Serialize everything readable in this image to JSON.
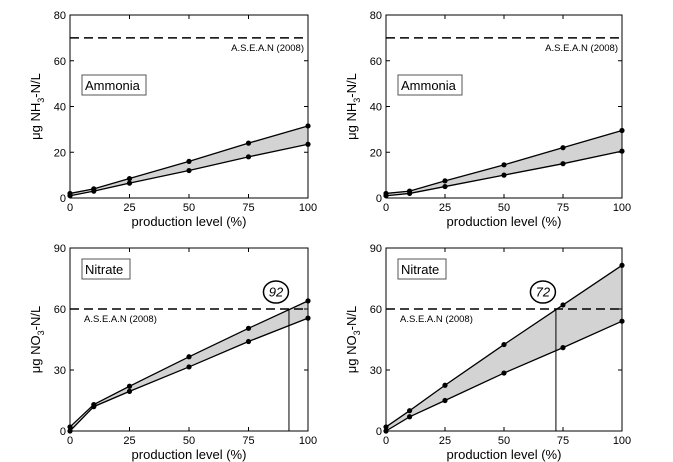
{
  "chart_data": [
    {
      "type": "area",
      "panel_label": "Ammonia",
      "xlabel": "production level (%)",
      "ylabel_parts": [
        "μg NH",
        "3",
        "-N/L"
      ],
      "xlim": [
        0,
        100
      ],
      "ylim": [
        0,
        80
      ],
      "xticks": [
        0,
        25,
        50,
        75,
        100
      ],
      "yticks": [
        0,
        20,
        40,
        60,
        80
      ],
      "reference": {
        "label": "A.S.E.A.N (2008)",
        "value": 70
      },
      "x": [
        0,
        10,
        25,
        50,
        75,
        100
      ],
      "series": [
        {
          "values": [
            2,
            4,
            8.5,
            16,
            24,
            31.5
          ]
        },
        {
          "values": [
            1,
            3,
            6.5,
            12,
            18,
            23.5
          ]
        }
      ],
      "crossing": null
    },
    {
      "type": "area",
      "panel_label": "Ammonia",
      "xlabel": "production level (%)",
      "ylabel_parts": [
        "μg NH",
        "3",
        "-N/L"
      ],
      "xlim": [
        0,
        100
      ],
      "ylim": [
        0,
        80
      ],
      "xticks": [
        0,
        25,
        50,
        75,
        100
      ],
      "yticks": [
        0,
        20,
        40,
        60,
        80
      ],
      "reference": {
        "label": "A.S.E.A.N (2008)",
        "value": 70
      },
      "x": [
        0,
        10,
        25,
        50,
        75,
        100
      ],
      "series": [
        {
          "values": [
            2,
            3,
            7.5,
            14.5,
            22,
            29.5
          ]
        },
        {
          "values": [
            1,
            2,
            5,
            10,
            15,
            20.5
          ]
        }
      ],
      "crossing": null
    },
    {
      "type": "area",
      "panel_label": "Nitrate",
      "xlabel": "production level (%)",
      "ylabel_parts": [
        "μg NO",
        "3",
        "-N/L"
      ],
      "xlim": [
        0,
        100
      ],
      "ylim": [
        0,
        90
      ],
      "xticks": [
        0,
        25,
        50,
        75,
        100
      ],
      "yticks": [
        0,
        30,
        60,
        90
      ],
      "reference": {
        "label": "A.S.E.A.N (2008)",
        "value": 60
      },
      "x": [
        0,
        10,
        25,
        50,
        75,
        100
      ],
      "series": [
        {
          "values": [
            2,
            13,
            22,
            36.5,
            50.5,
            64
          ]
        },
        {
          "values": [
            0,
            12,
            19.5,
            31.5,
            44,
            55.5
          ]
        }
      ],
      "crossing": {
        "x": 92,
        "label": "92"
      }
    },
    {
      "type": "area",
      "panel_label": "Nitrate",
      "xlabel": "production level (%)",
      "ylabel_parts": [
        "μg NO",
        "3",
        "-N/L"
      ],
      "xlim": [
        0,
        100
      ],
      "ylim": [
        0,
        90
      ],
      "xticks": [
        0,
        25,
        50,
        75,
        100
      ],
      "yticks": [
        0,
        30,
        60,
        90
      ],
      "reference": {
        "label": "A.S.E.A.N (2008)",
        "value": 60
      },
      "x": [
        0,
        10,
        25,
        50,
        75,
        100
      ],
      "series": [
        {
          "values": [
            2,
            10,
            22.5,
            42.5,
            62,
            81.5
          ]
        },
        {
          "values": [
            0,
            7,
            15,
            28.5,
            41,
            54
          ]
        }
      ],
      "crossing": {
        "x": 72,
        "label": "72"
      }
    }
  ]
}
